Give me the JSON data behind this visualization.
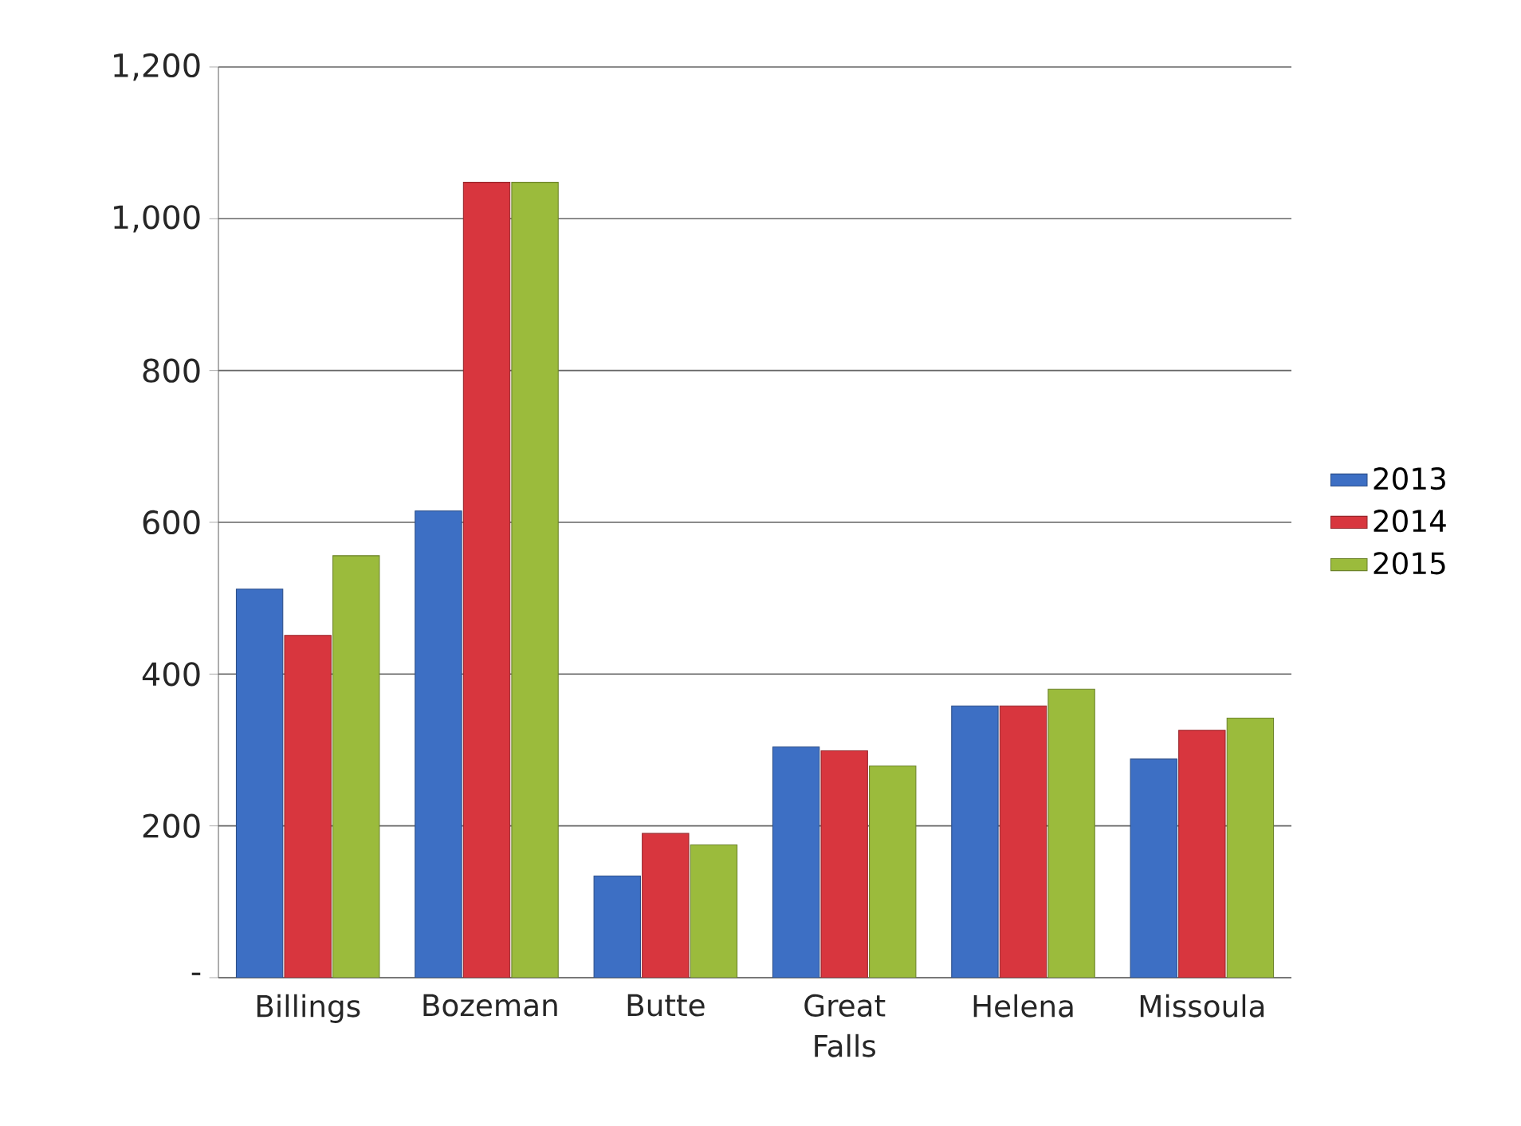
{
  "chart_data": {
    "type": "bar",
    "categories": [
      "Billings",
      "Bozeman",
      "Butte",
      "Great Falls",
      "Helena",
      "Missoula"
    ],
    "series": [
      {
        "name": "2013",
        "color": "#3d6fc4",
        "values": [
          512,
          615,
          134,
          304,
          358,
          288
        ]
      },
      {
        "name": "2014",
        "color": "#d8363e",
        "values": [
          451,
          1048,
          190,
          299,
          358,
          326
        ]
      },
      {
        "name": "2015",
        "color": "#9bbb3c",
        "values": [
          556,
          1048,
          175,
          279,
          380,
          342
        ]
      }
    ],
    "ylim": [
      0,
      1200
    ],
    "yticks": [
      {
        "value": 0,
        "label": "-"
      },
      200,
      400,
      600,
      800,
      {
        "value": 1000,
        "label": "1,000"
      },
      {
        "value": 1200,
        "label": "1,200"
      }
    ],
    "grid": "y",
    "legend": "right"
  }
}
